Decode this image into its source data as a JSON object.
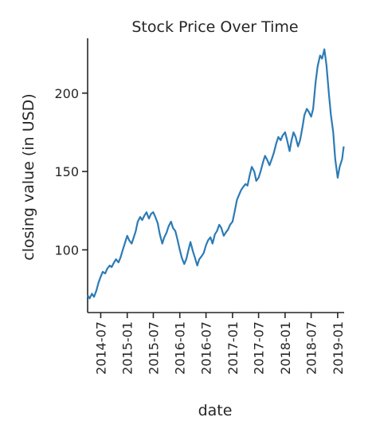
{
  "chart_data": {
    "type": "line",
    "title": "Stock Price Over Time",
    "xlabel": "date",
    "ylabel": "closing value (in USD)",
    "xlim": [
      "2014-04-01",
      "2019-02-15"
    ],
    "ylim": [
      60,
      235
    ],
    "x_ticks": [
      "2014-07",
      "2015-01",
      "2015-07",
      "2016-01",
      "2016-07",
      "2017-01",
      "2017-07",
      "2018-01",
      "2018-07",
      "2019-01"
    ],
    "y_ticks": [
      100,
      150,
      200
    ],
    "grid": false,
    "color": "#2c7bb6",
    "series": [
      {
        "points": [
          [
            "2014-04-01",
            71
          ],
          [
            "2014-04-15",
            69
          ],
          [
            "2014-05-01",
            72
          ],
          [
            "2014-05-15",
            70
          ],
          [
            "2014-06-01",
            74
          ],
          [
            "2014-06-15",
            79
          ],
          [
            "2014-07-01",
            83
          ],
          [
            "2014-07-15",
            86
          ],
          [
            "2014-08-01",
            85
          ],
          [
            "2014-08-15",
            88
          ],
          [
            "2014-09-01",
            90
          ],
          [
            "2014-09-15",
            89
          ],
          [
            "2014-10-01",
            92
          ],
          [
            "2014-10-15",
            94
          ],
          [
            "2014-11-01",
            92
          ],
          [
            "2014-11-15",
            95
          ],
          [
            "2014-12-01",
            100
          ],
          [
            "2014-12-15",
            104
          ],
          [
            "2015-01-01",
            109
          ],
          [
            "2015-01-15",
            106
          ],
          [
            "2015-02-01",
            104
          ],
          [
            "2015-02-15",
            108
          ],
          [
            "2015-03-01",
            112
          ],
          [
            "2015-03-15",
            118
          ],
          [
            "2015-04-01",
            121
          ],
          [
            "2015-04-15",
            119
          ],
          [
            "2015-05-01",
            122
          ],
          [
            "2015-05-15",
            124
          ],
          [
            "2015-06-01",
            120
          ],
          [
            "2015-06-15",
            123
          ],
          [
            "2015-07-01",
            124
          ],
          [
            "2015-07-15",
            121
          ],
          [
            "2015-08-01",
            117
          ],
          [
            "2015-08-15",
            110
          ],
          [
            "2015-09-01",
            104
          ],
          [
            "2015-09-15",
            108
          ],
          [
            "2015-10-01",
            111
          ],
          [
            "2015-10-15",
            115
          ],
          [
            "2015-11-01",
            118
          ],
          [
            "2015-11-15",
            114
          ],
          [
            "2015-12-01",
            112
          ],
          [
            "2015-12-15",
            107
          ],
          [
            "2016-01-01",
            100
          ],
          [
            "2016-01-15",
            95
          ],
          [
            "2016-02-01",
            91
          ],
          [
            "2016-02-15",
            94
          ],
          [
            "2016-03-01",
            100
          ],
          [
            "2016-03-15",
            105
          ],
          [
            "2016-04-01",
            99
          ],
          [
            "2016-04-15",
            95
          ],
          [
            "2016-05-01",
            90
          ],
          [
            "2016-05-15",
            94
          ],
          [
            "2016-06-01",
            96
          ],
          [
            "2016-06-15",
            98
          ],
          [
            "2016-07-01",
            103
          ],
          [
            "2016-07-15",
            106
          ],
          [
            "2016-08-01",
            108
          ],
          [
            "2016-08-15",
            104
          ],
          [
            "2016-09-01",
            110
          ],
          [
            "2016-09-15",
            112
          ],
          [
            "2016-10-01",
            116
          ],
          [
            "2016-10-15",
            114
          ],
          [
            "2016-11-01",
            109
          ],
          [
            "2016-11-15",
            111
          ],
          [
            "2016-12-01",
            113
          ],
          [
            "2016-12-15",
            116
          ],
          [
            "2017-01-01",
            118
          ],
          [
            "2017-01-15",
            124
          ],
          [
            "2017-02-01",
            132
          ],
          [
            "2017-02-15",
            135
          ],
          [
            "2017-03-01",
            138
          ],
          [
            "2017-03-15",
            140
          ],
          [
            "2017-04-01",
            142
          ],
          [
            "2017-04-15",
            141
          ],
          [
            "2017-05-01",
            148
          ],
          [
            "2017-05-15",
            153
          ],
          [
            "2017-06-01",
            150
          ],
          [
            "2017-06-15",
            144
          ],
          [
            "2017-07-01",
            146
          ],
          [
            "2017-07-15",
            150
          ],
          [
            "2017-08-01",
            156
          ],
          [
            "2017-08-15",
            160
          ],
          [
            "2017-09-01",
            157
          ],
          [
            "2017-09-15",
            154
          ],
          [
            "2017-10-01",
            158
          ],
          [
            "2017-10-15",
            162
          ],
          [
            "2017-11-01",
            168
          ],
          [
            "2017-11-15",
            172
          ],
          [
            "2017-12-01",
            170
          ],
          [
            "2017-12-15",
            173
          ],
          [
            "2018-01-01",
            175
          ],
          [
            "2018-01-15",
            170
          ],
          [
            "2018-02-01",
            163
          ],
          [
            "2018-02-15",
            170
          ],
          [
            "2018-03-01",
            175
          ],
          [
            "2018-03-15",
            172
          ],
          [
            "2018-04-01",
            166
          ],
          [
            "2018-04-15",
            170
          ],
          [
            "2018-05-01",
            178
          ],
          [
            "2018-05-15",
            186
          ],
          [
            "2018-06-01",
            190
          ],
          [
            "2018-06-15",
            188
          ],
          [
            "2018-07-01",
            185
          ],
          [
            "2018-07-15",
            190
          ],
          [
            "2018-08-01",
            207
          ],
          [
            "2018-08-15",
            217
          ],
          [
            "2018-09-01",
            224
          ],
          [
            "2018-09-15",
            222
          ],
          [
            "2018-10-01",
            228
          ],
          [
            "2018-10-15",
            218
          ],
          [
            "2018-11-01",
            200
          ],
          [
            "2018-11-15",
            186
          ],
          [
            "2018-12-01",
            175
          ],
          [
            "2018-12-15",
            158
          ],
          [
            "2019-01-01",
            146
          ],
          [
            "2019-01-15",
            153
          ],
          [
            "2019-02-01",
            158
          ],
          [
            "2019-02-12",
            166
          ]
        ]
      }
    ]
  }
}
